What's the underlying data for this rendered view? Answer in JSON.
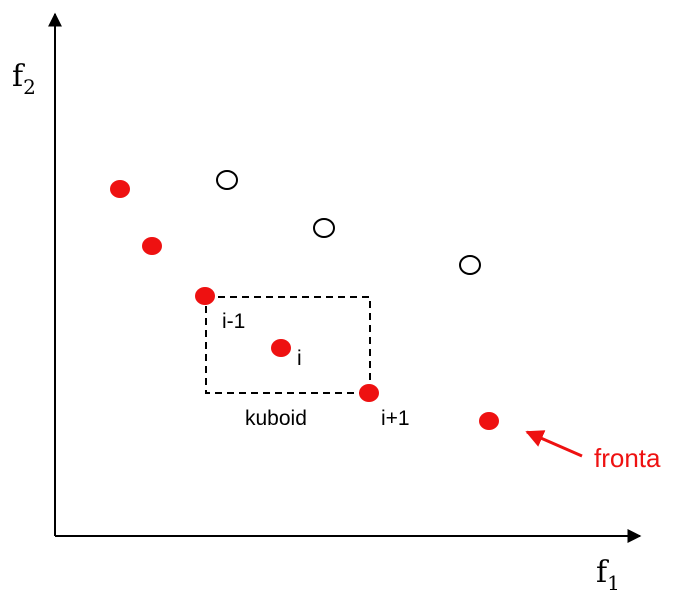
{
  "axes": {
    "x_label": {
      "main": "f",
      "sub": "1"
    },
    "y_label": {
      "main": "f",
      "sub": "2"
    }
  },
  "labels": {
    "prev": "i-1",
    "current": "i",
    "next": "i+1",
    "box": "kuboid",
    "front": "fronta"
  },
  "colors": {
    "front_points": "#ee1111",
    "dominated_stroke": "#000000",
    "front_label": "#ee1111",
    "axis": "#000000"
  }
}
